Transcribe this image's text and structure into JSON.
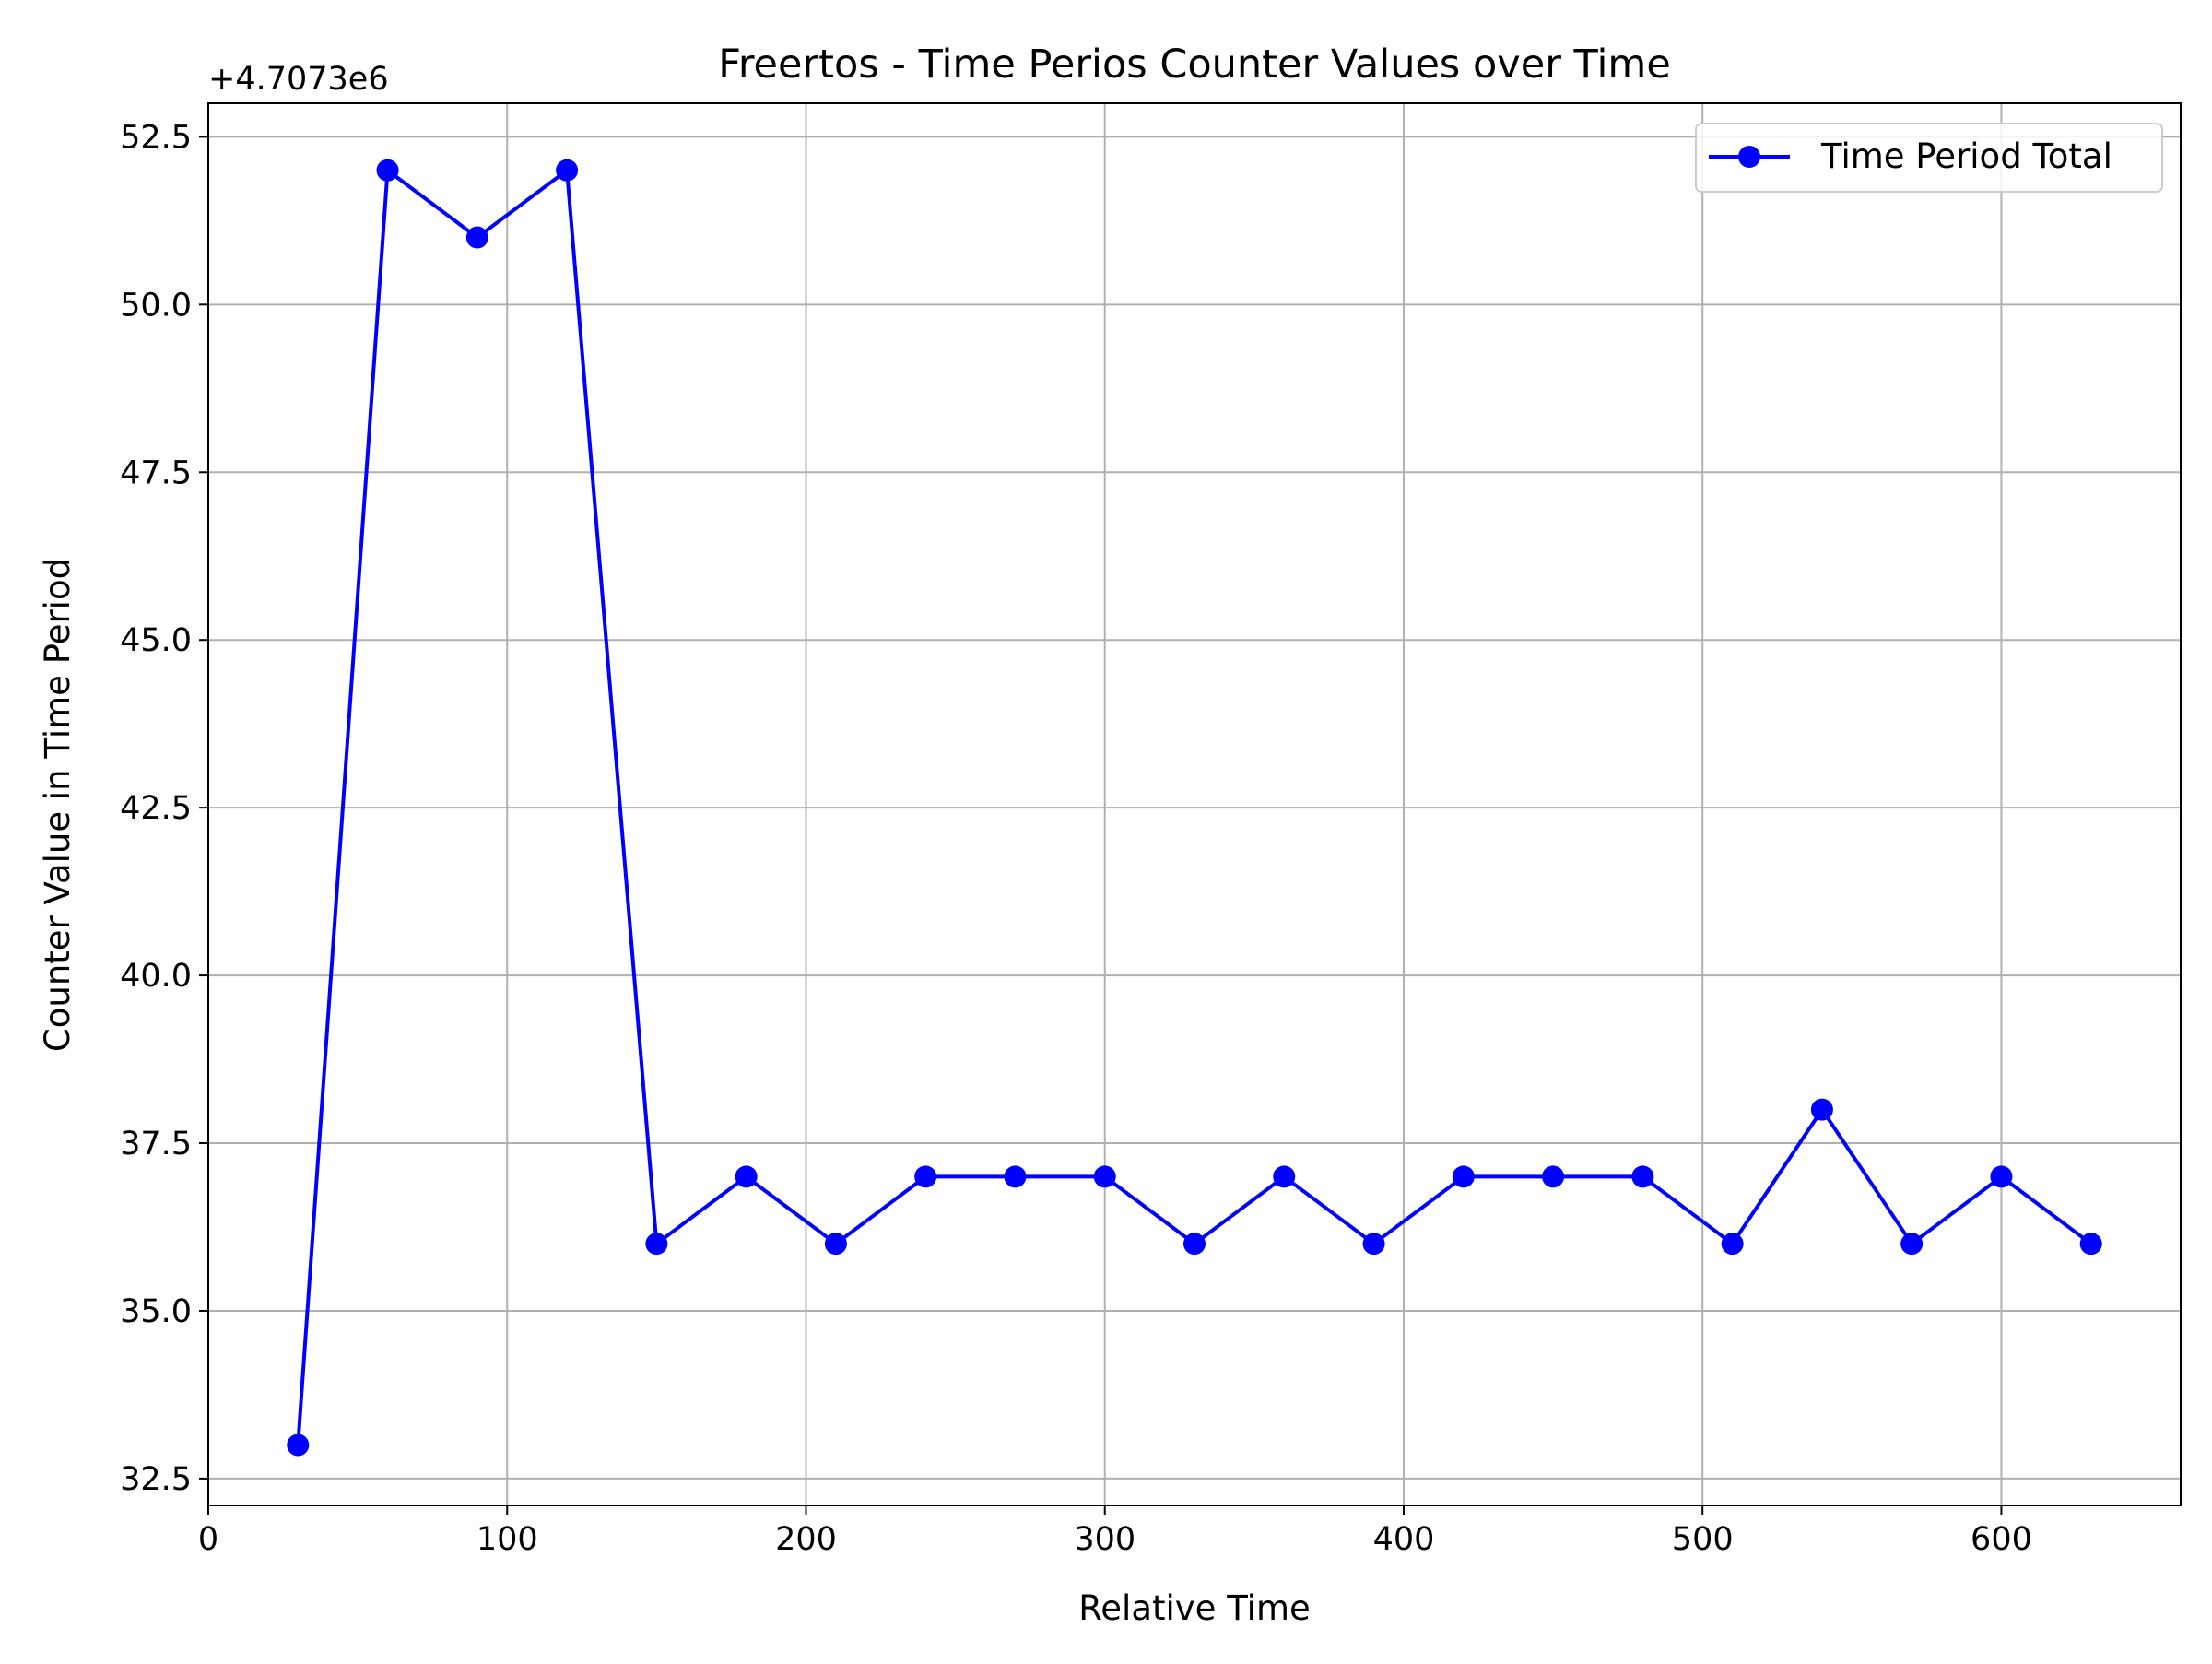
{
  "chart_data": {
    "type": "line",
    "title": "Freertos - Time Perios Counter Values over Time",
    "xlabel": "Relative Time",
    "ylabel": "Counter Value in Time Period",
    "offset_text": "+4.7073e6",
    "y_offset": 4707300,
    "xlim": [
      0,
      660
    ],
    "ylim": [
      32.1,
      53.0
    ],
    "x_ticks": [
      0,
      100,
      200,
      300,
      400,
      500,
      600
    ],
    "x_tick_labels": [
      "0",
      "100",
      "200",
      "300",
      "400",
      "500",
      "600"
    ],
    "y_ticks": [
      32.5,
      35.0,
      37.5,
      40.0,
      42.5,
      45.0,
      47.5,
      50.0,
      52.5
    ],
    "y_tick_labels": [
      "32.5",
      "35.0",
      "37.5",
      "40.0",
      "42.5",
      "45.0",
      "47.5",
      "50.0",
      "52.5"
    ],
    "grid": true,
    "legend_position": "top-right",
    "series": [
      {
        "name": "Time Period Total",
        "color": "#0000ff",
        "marker": "circle",
        "x": [
          30,
          60,
          90,
          120,
          150,
          180,
          210,
          240,
          270,
          300,
          330,
          360,
          390,
          420,
          450,
          480,
          510,
          540,
          570,
          600,
          630
        ],
        "y": [
          33,
          52,
          51,
          52,
          36,
          37,
          36,
          37,
          37,
          37,
          36,
          37,
          36,
          37,
          37,
          37,
          36,
          38,
          36,
          37,
          36
        ]
      }
    ]
  }
}
